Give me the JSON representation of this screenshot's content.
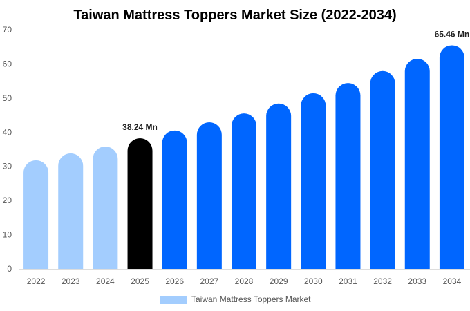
{
  "chart_data": {
    "type": "bar",
    "title": "Taiwan Mattress Toppers Market Size (2022-2034)",
    "xlabel": "",
    "ylabel": "",
    "categories": [
      "2022",
      "2023",
      "2024",
      "2025",
      "2026",
      "2027",
      "2028",
      "2029",
      "2030",
      "2031",
      "2032",
      "2033",
      "2034"
    ],
    "series": [
      {
        "name": "Taiwan Mattress Toppers Market",
        "values": [
          31.8,
          33.8,
          35.8,
          38.24,
          40.5,
          42.9,
          45.5,
          48.4,
          51.4,
          54.4,
          57.9,
          61.5,
          65.46
        ]
      }
    ],
    "data_labels": [
      {
        "category": "2025",
        "text": "38.24 Mn"
      },
      {
        "category": "2034",
        "text": "65.46 Mn"
      }
    ],
    "ylim": [
      0,
      70
    ],
    "yticks": [
      0,
      10,
      20,
      30,
      40,
      50,
      60,
      70
    ],
    "grid": false,
    "legend": "bottom",
    "colors": {
      "historical": "#a3cdfe",
      "current": "#000000",
      "forecast": "#0066ff"
    },
    "color_segments": {
      "historical": [
        "2022",
        "2023",
        "2024"
      ],
      "current": [
        "2025"
      ],
      "forecast": [
        "2026",
        "2027",
        "2028",
        "2029",
        "2030",
        "2031",
        "2032",
        "2033",
        "2034"
      ]
    }
  }
}
